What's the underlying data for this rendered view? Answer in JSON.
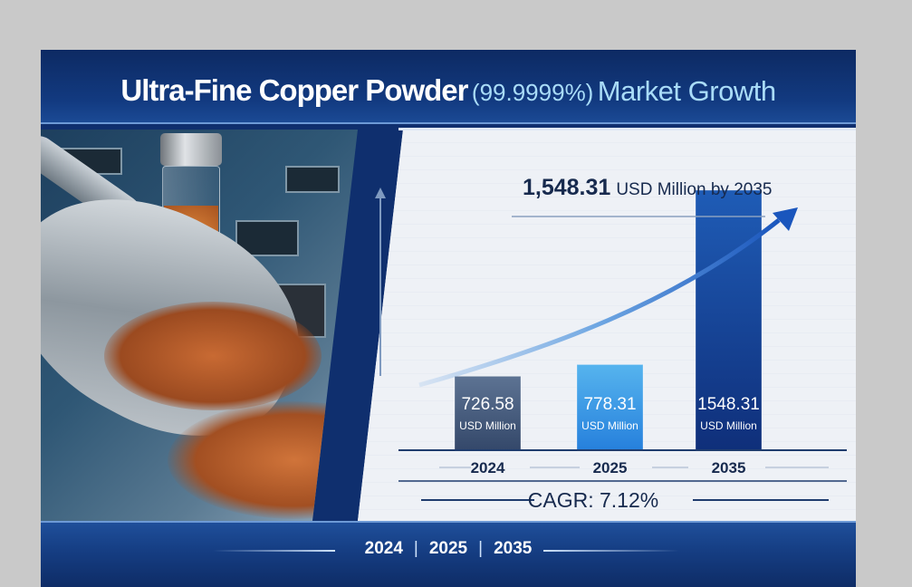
{
  "title": {
    "main": "Ultra-Fine Copper Powder",
    "purity": "(99.9999%)",
    "suffix": "Market Growth"
  },
  "headline": {
    "value": "1,548.31",
    "text": "USD Million by 2035"
  },
  "cagr": "CAGR: 7.12%",
  "footer_years": [
    "2024",
    "2025",
    "2035"
  ],
  "colors": {
    "bar_2024": "#3f5a80",
    "bar_2025": "#3c9ce6",
    "bar_2035": "#173f98",
    "arrow": "#1c5fc4",
    "title_bg": "#0f2f6e"
  },
  "chart_data": {
    "type": "bar",
    "categories": [
      "2024",
      "2025",
      "2035"
    ],
    "values": [
      726.58,
      778.31,
      1548.31
    ],
    "data_labels": [
      "726.58",
      "778.31",
      "1548.31"
    ],
    "unit_label": "USD Million",
    "trend_arrow": true,
    "grid": false
  }
}
